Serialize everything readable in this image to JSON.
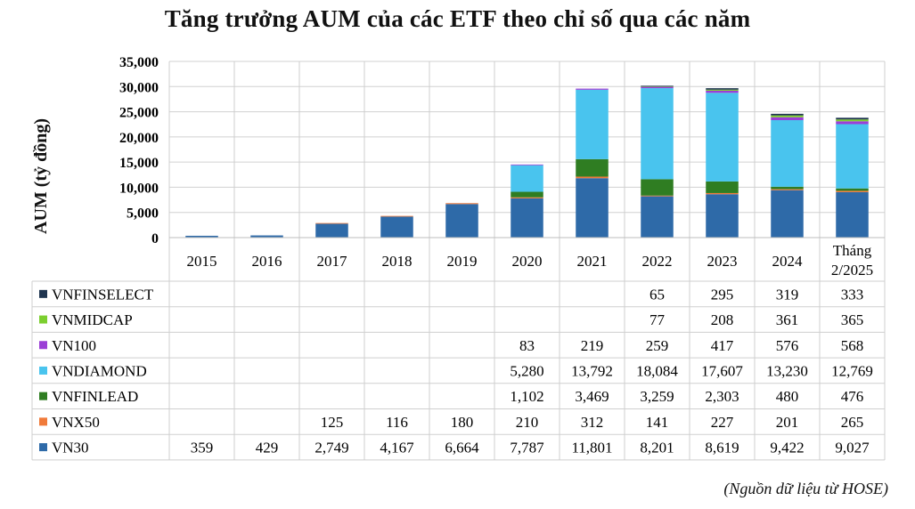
{
  "chart_data": {
    "type": "bar",
    "stacked": true,
    "title": "Tăng trưởng AUM của các ETF theo chỉ số qua các năm",
    "ylabel": "AUM (tỷ đồng)",
    "xlabel": "",
    "ylim": [
      0,
      35000
    ],
    "y_ticks": [
      "0",
      "5,000",
      "10,000",
      "15,000",
      "20,000",
      "25,000",
      "30,000",
      "35,000"
    ],
    "y_tick_values": [
      0,
      5000,
      10000,
      15000,
      20000,
      25000,
      30000,
      35000
    ],
    "grid": true,
    "legend": "data-table",
    "categories": [
      "2015",
      "2016",
      "2017",
      "2018",
      "2019",
      "2020",
      "2021",
      "2022",
      "2023",
      "2024",
      "Tháng 2/2025"
    ],
    "series": [
      {
        "name": "VN30",
        "color": "#2e6aa8",
        "values": [
          359,
          429,
          2749,
          4167,
          6664,
          7787,
          11801,
          8201,
          8619,
          9422,
          9027
        ],
        "labels": [
          "359",
          "429",
          "2,749",
          "4,167",
          "6,664",
          "7,787",
          "11,801",
          "8,201",
          "8,619",
          "9,422",
          "9,027"
        ]
      },
      {
        "name": "VNX50",
        "color": "#f07a3a",
        "values": [
          null,
          null,
          125,
          116,
          180,
          210,
          312,
          141,
          227,
          201,
          265
        ],
        "labels": [
          "",
          "",
          "125",
          "116",
          "180",
          "210",
          "312",
          "141",
          "227",
          "201",
          "265"
        ]
      },
      {
        "name": "VNFINLEAD",
        "color": "#2f7d22",
        "values": [
          null,
          null,
          null,
          null,
          null,
          1102,
          3469,
          3259,
          2303,
          480,
          476
        ],
        "labels": [
          "",
          "",
          "",
          "",
          "",
          "1,102",
          "3,469",
          "3,259",
          "2,303",
          "480",
          "476"
        ]
      },
      {
        "name": "VNDIAMOND",
        "color": "#49c4ee",
        "values": [
          null,
          null,
          null,
          null,
          null,
          5280,
          13792,
          18084,
          17607,
          13230,
          12769
        ],
        "labels": [
          "",
          "",
          "",
          "",
          "",
          "5,280",
          "13,792",
          "18,084",
          "17,607",
          "13,230",
          "12,769"
        ]
      },
      {
        "name": "VN100",
        "color": "#9b3fd6",
        "values": [
          null,
          null,
          null,
          null,
          null,
          83,
          219,
          259,
          417,
          576,
          568
        ],
        "labels": [
          "",
          "",
          "",
          "",
          "",
          "83",
          "219",
          "259",
          "417",
          "576",
          "568"
        ]
      },
      {
        "name": "VNMIDCAP",
        "color": "#7ccf2f",
        "values": [
          null,
          null,
          null,
          null,
          null,
          null,
          null,
          77,
          208,
          361,
          365
        ],
        "labels": [
          "",
          "",
          "",
          "",
          "",
          "",
          "",
          "77",
          "208",
          "361",
          "365"
        ]
      },
      {
        "name": "VNFINSELECT",
        "color": "#1f3550",
        "values": [
          null,
          null,
          null,
          null,
          null,
          null,
          null,
          65,
          295,
          319,
          333
        ],
        "labels": [
          "",
          "",
          "",
          "",
          "",
          "",
          "",
          "65",
          "295",
          "319",
          "333"
        ]
      }
    ]
  },
  "source_note": "(Nguồn dữ liệu từ HOSE)"
}
